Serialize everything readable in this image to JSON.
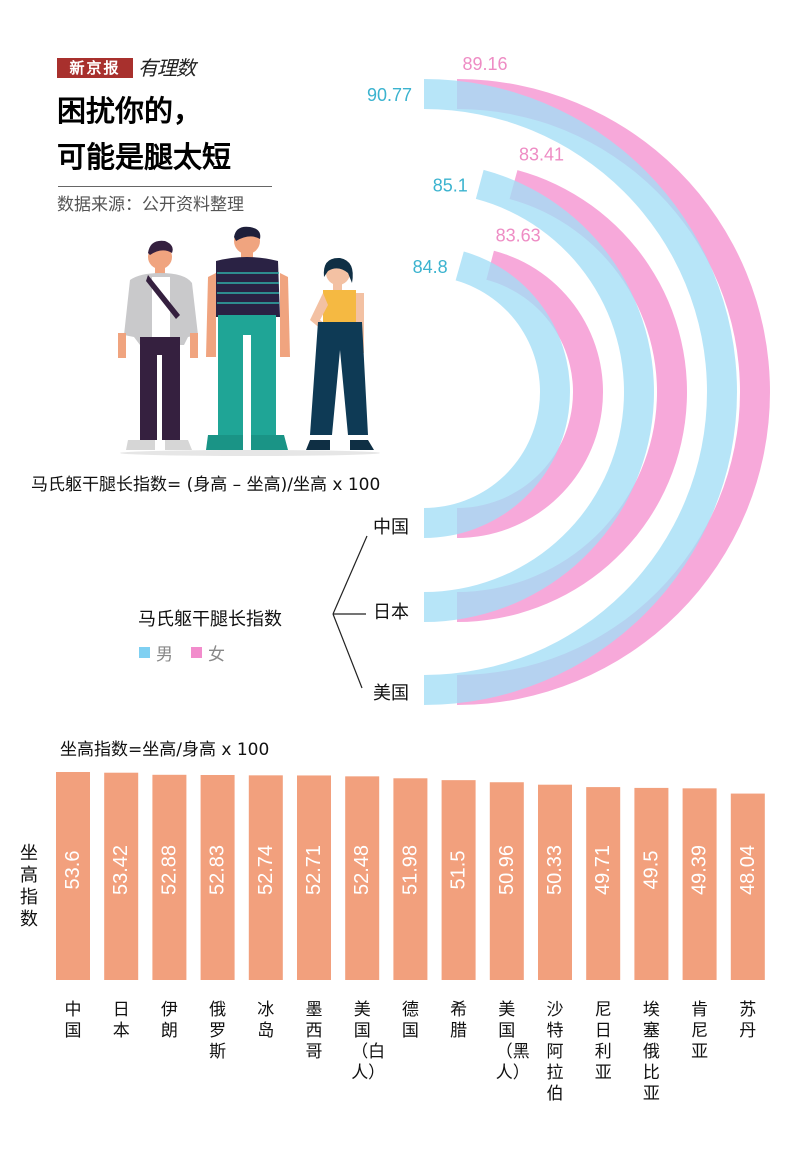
{
  "masthead": {
    "brand": "新京报",
    "column": "有理数"
  },
  "title": {
    "line1": "困扰你的，",
    "line2": "可能是腿太短"
  },
  "source": "数据来源：公开资料整理",
  "arc_formula": "马氏躯干腿长指数= (身高 – 坐高)/坐高 x 100",
  "bar_formula": "坐高指数=坐高/身高 x 100",
  "colors": {
    "male": "#a3def6",
    "female": "#f7a9da",
    "male_text": "#3bb3cf",
    "female_text": "#ee8cc4",
    "bar": "#f2a07d",
    "brand_red": "#a8302d"
  },
  "chart_data": [
    {
      "type": "radial-bar",
      "title": "马氏躯干腿长指数",
      "legend": [
        "男",
        "女"
      ],
      "categories": [
        "中国",
        "日本",
        "美国"
      ],
      "series": [
        {
          "name": "男",
          "values": [
            84.8,
            85.1,
            90.77
          ]
        },
        {
          "name": "女",
          "values": [
            83.63,
            83.41,
            89.16
          ]
        }
      ]
    },
    {
      "type": "bar",
      "ylabel": "坐高指数",
      "ylim": [
        0,
        53.6
      ],
      "categories": [
        "中国",
        "日本",
        "伊朗",
        "俄罗斯",
        "冰岛",
        "墨西哥",
        "美国（白人）",
        "德国",
        "希腊",
        "美国（黑人）",
        "沙特阿拉伯",
        "尼日利亚",
        "埃塞俄比亚",
        "肯尼亚",
        "苏丹"
      ],
      "values": [
        53.6,
        53.42,
        52.88,
        52.83,
        52.74,
        52.71,
        52.48,
        51.98,
        51.5,
        50.96,
        50.33,
        49.71,
        49.5,
        49.39,
        48.04
      ],
      "value_labels": [
        "53.6",
        "53.42",
        "52.88",
        "52.83",
        "52.74",
        "52.71",
        "52.48",
        "51.98",
        "51.5",
        "50.96",
        "50.33",
        "49.71",
        "49.5",
        "49.39",
        "48.04"
      ]
    }
  ]
}
